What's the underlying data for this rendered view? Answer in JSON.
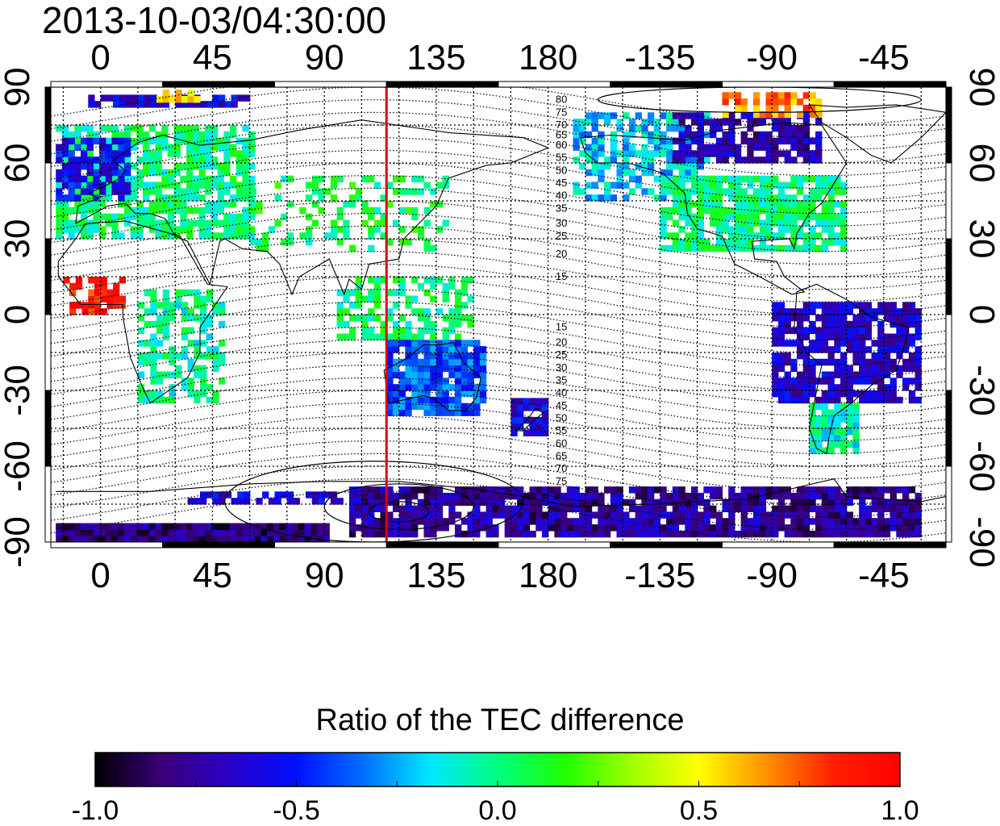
{
  "title": "2013-10-03/04:30:00",
  "colorbar": {
    "title": "Ratio of the TEC difference",
    "tick_labels": [
      "-1.0",
      "-0.5",
      "0.0",
      "0.5",
      "1.0"
    ],
    "tick_values": [
      -1.0,
      -0.5,
      0.0,
      0.5,
      1.0
    ],
    "range": [
      -1.0,
      1.0
    ],
    "colormap": [
      "#000000",
      "#3a007a",
      "#2a00c8",
      "#0010ff",
      "#0070ff",
      "#00e8ff",
      "#00ff80",
      "#20ff00",
      "#a0ff00",
      "#ffff00",
      "#ff9000",
      "#ff2000",
      "#ff0000"
    ]
  },
  "map": {
    "x_axis": {
      "tick_labels": [
        "0",
        "45",
        "90",
        "135",
        "180",
        "-135",
        "-90",
        "-45"
      ],
      "tick_lon_unwrapped": [
        0,
        45,
        90,
        135,
        180,
        225,
        270,
        315
      ],
      "lon_range": [
        -20,
        340
      ]
    },
    "y_axis": {
      "tick_labels": [
        "90",
        "60",
        "30",
        "0",
        "-30",
        "-60",
        "-90"
      ],
      "tick_lat": [
        90,
        60,
        30,
        0,
        -30,
        -60,
        -90
      ],
      "lat_range": [
        -90,
        90
      ]
    },
    "grid": true,
    "red_line_lon": 115,
    "contour_labels_north": [
      "80",
      "75",
      "70",
      "65",
      "60",
      "55",
      "50",
      "45",
      "40",
      "35",
      "30",
      "25",
      "20",
      "15"
    ],
    "contour_labels_south": [
      "15",
      "20",
      "25",
      "30",
      "35",
      "40",
      "45",
      "50",
      "55",
      "60",
      "65",
      "70",
      "75"
    ],
    "contour_label_lat_north": [
      85,
      80,
      75,
      71,
      67,
      62,
      57,
      52,
      47,
      42,
      36,
      31,
      24,
      15
    ],
    "contour_label_lat_south": [
      -5,
      -11,
      -16,
      -21,
      -26,
      -31,
      -36,
      -41,
      -46,
      -51,
      -56,
      -61,
      -66
    ],
    "contour_label_lon": 183,
    "colors": {
      "red_line": "#e00000",
      "grid": "#000000"
    }
  },
  "data_regions": [
    {
      "lon": [
        -18,
        60
      ],
      "lat": [
        30,
        75
      ],
      "value": 0.0,
      "density": 0.75
    },
    {
      "lon": [
        -18,
        10
      ],
      "lat": [
        45,
        70
      ],
      "value": -0.55,
      "density": 0.7
    },
    {
      "lon": [
        -5,
        60
      ],
      "lat": [
        82,
        87
      ],
      "value": -0.6,
      "density": 0.8
    },
    {
      "lon": [
        15,
        40
      ],
      "lat": [
        84,
        88
      ],
      "value": 0.6,
      "density": 0.6
    },
    {
      "lon": [
        60,
        140
      ],
      "lat": [
        25,
        55
      ],
      "value": 0.05,
      "density": 0.3
    },
    {
      "lon": [
        -15,
        10
      ],
      "lat": [
        0,
        15
      ],
      "value": 0.9,
      "density": 0.6
    },
    {
      "lon": [
        15,
        50
      ],
      "lat": [
        -35,
        10
      ],
      "value": -0.05,
      "density": 0.55
    },
    {
      "lon": [
        95,
        150
      ],
      "lat": [
        -10,
        15
      ],
      "value": 0.0,
      "density": 0.55
    },
    {
      "lon": [
        115,
        155
      ],
      "lat": [
        -40,
        -12
      ],
      "value": -0.4,
      "density": 0.9
    },
    {
      "lon": [
        165,
        180
      ],
      "lat": [
        -48,
        -35
      ],
      "value": -0.6,
      "density": 0.85
    },
    {
      "lon": [
        190,
        245
      ],
      "lat": [
        45,
        80
      ],
      "value": -0.2,
      "density": 0.6
    },
    {
      "lon": [
        230,
        290
      ],
      "lat": [
        60,
        80
      ],
      "value": -0.7,
      "density": 0.7
    },
    {
      "lon": [
        250,
        290
      ],
      "lat": [
        78,
        87
      ],
      "value": 0.7,
      "density": 0.7
    },
    {
      "lon": [
        225,
        300
      ],
      "lat": [
        25,
        55
      ],
      "value": 0.0,
      "density": 0.8
    },
    {
      "lon": [
        270,
        330
      ],
      "lat": [
        -35,
        5
      ],
      "value": -0.65,
      "density": 0.8
    },
    {
      "lon": [
        285,
        305
      ],
      "lat": [
        -55,
        -35
      ],
      "value": -0.1,
      "density": 0.8
    },
    {
      "lon": [
        100,
        330
      ],
      "lat": [
        -88,
        -70
      ],
      "value": -0.75,
      "density": 0.85
    },
    {
      "lon": [
        -18,
        90
      ],
      "lat": [
        -90,
        -84
      ],
      "value": -0.8,
      "density": 1.0
    },
    {
      "lon": [
        30,
        110
      ],
      "lat": [
        -75,
        -70
      ],
      "value": -0.6,
      "density": 0.5
    }
  ]
}
